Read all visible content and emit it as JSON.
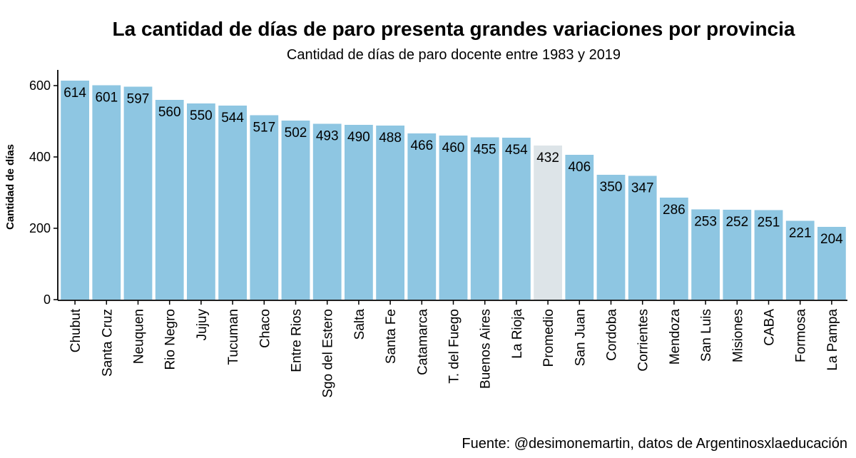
{
  "chart_data": {
    "type": "bar",
    "title": "La cantidad de días de paro presenta grandes variaciones por provincia",
    "subtitle": "Cantidad de días de paro docente entre 1983 y 2019",
    "xlabel": "",
    "ylabel": "Cantidad de días",
    "caption": "Fuente: @desimonemartin, datos de Argentinosxlaeducación",
    "ylim": [
      0,
      640
    ],
    "yticks": [
      "0",
      "200",
      "400",
      "600"
    ],
    "grid": false,
    "legend": "none",
    "categories": [
      "Chubut",
      "Santa Cruz",
      "Neuquen",
      "Rio Negro",
      "Jujuy",
      "Tucuman",
      "Chaco",
      "Entre Rios",
      "Sgo del Estero",
      "Salta",
      "Santa Fe",
      "Catamarca",
      "T. del Fuego",
      "Buenos Aires",
      "La Rioja",
      "Promedio",
      "San Juan",
      "Cordoba",
      "Corrientes",
      "Mendoza",
      "San Luis",
      "Misiones",
      "CABA",
      "Formosa",
      "La Pampa"
    ],
    "values": [
      614,
      601,
      597,
      560,
      550,
      544,
      517,
      502,
      493,
      490,
      488,
      466,
      460,
      455,
      454,
      432,
      406,
      350,
      347,
      286,
      253,
      252,
      251,
      221,
      204
    ],
    "labels": [
      "614",
      "601",
      "597",
      "560",
      "550",
      "544",
      "517",
      "502",
      "493",
      "490",
      "488",
      "466",
      "460",
      "455",
      "454",
      "432",
      "406",
      "350",
      "347",
      "286",
      "253",
      "252",
      "251",
      "221",
      "204"
    ],
    "highlight_category": "Promedio",
    "colors": {
      "bar": "#8ec6e2",
      "highlight": "#dde4e8",
      "axis": "#000000",
      "text": "#000000"
    }
  }
}
